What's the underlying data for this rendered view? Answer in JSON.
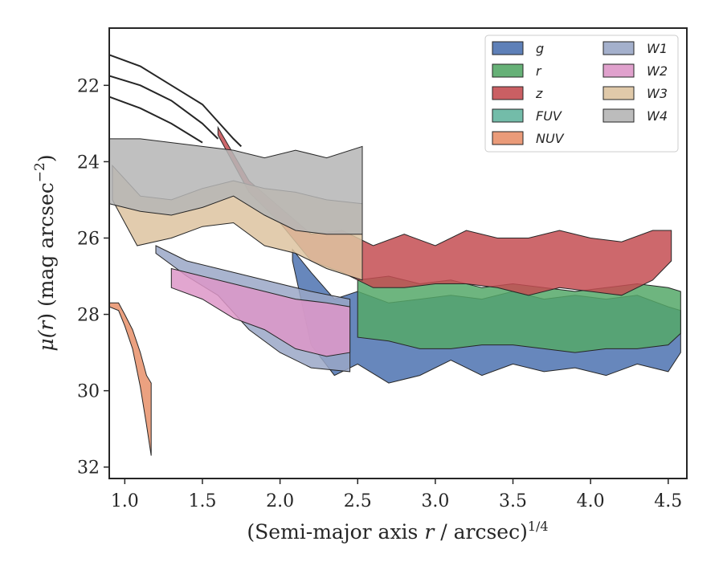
{
  "chart_data": {
    "type": "area",
    "xlabel": "(Semi-major axis r / arcsec)^{1/4}",
    "xlabel_parts": [
      "(Semi-major axis ",
      "r",
      " / arcsec)",
      "1/4"
    ],
    "ylabel": "μ(r) (mag arcsec^{-2})",
    "ylabel_parts": [
      "μ(",
      "r",
      ") (mag arcsec",
      "−2",
      ")"
    ],
    "xlim": [
      0.9,
      4.62
    ],
    "ylim": [
      32.3,
      20.5
    ],
    "y_inverted": true,
    "xticks": [
      "1.0",
      "1.5",
      "2.0",
      "2.5",
      "3.0",
      "3.5",
      "4.0",
      "4.5"
    ],
    "yticks": [
      "22",
      "24",
      "26",
      "28",
      "30",
      "32"
    ],
    "grid": false,
    "legend": {
      "placement": "top-right",
      "columns": 2
    },
    "series": [
      {
        "name": "g",
        "color": "#4c72b0",
        "upper": [
          [
            2.08,
            26.3
          ],
          [
            2.2,
            26.9
          ],
          [
            2.35,
            27.6
          ],
          [
            2.5,
            27.4
          ],
          [
            2.7,
            27.7
          ],
          [
            2.9,
            27.6
          ],
          [
            3.1,
            27.5
          ],
          [
            3.3,
            27.6
          ],
          [
            3.5,
            27.4
          ],
          [
            3.7,
            27.6
          ],
          [
            3.9,
            27.5
          ],
          [
            4.1,
            27.6
          ],
          [
            4.3,
            27.5
          ],
          [
            4.5,
            27.8
          ],
          [
            4.58,
            27.9
          ]
        ],
        "lower": [
          [
            2.08,
            26.6
          ],
          [
            2.2,
            28.8
          ],
          [
            2.35,
            29.6
          ],
          [
            2.5,
            29.3
          ],
          [
            2.7,
            29.8
          ],
          [
            2.9,
            29.6
          ],
          [
            3.1,
            29.2
          ],
          [
            3.3,
            29.6
          ],
          [
            3.5,
            29.3
          ],
          [
            3.7,
            29.5
          ],
          [
            3.9,
            29.4
          ],
          [
            4.1,
            29.6
          ],
          [
            4.3,
            29.3
          ],
          [
            4.5,
            29.5
          ],
          [
            4.58,
            29.0
          ]
        ]
      },
      {
        "name": "r",
        "color": "#55a868",
        "upper": [
          [
            2.5,
            27.1
          ],
          [
            2.7,
            27.0
          ],
          [
            2.9,
            27.2
          ],
          [
            3.1,
            27.1
          ],
          [
            3.3,
            27.3
          ],
          [
            3.5,
            27.2
          ],
          [
            3.7,
            27.3
          ],
          [
            3.9,
            27.4
          ],
          [
            4.1,
            27.3
          ],
          [
            4.3,
            27.2
          ],
          [
            4.5,
            27.3
          ],
          [
            4.58,
            27.4
          ]
        ],
        "lower": [
          [
            2.5,
            28.6
          ],
          [
            2.7,
            28.7
          ],
          [
            2.9,
            28.9
          ],
          [
            3.1,
            28.9
          ],
          [
            3.3,
            28.8
          ],
          [
            3.5,
            28.8
          ],
          [
            3.7,
            28.9
          ],
          [
            3.9,
            29.0
          ],
          [
            4.1,
            28.9
          ],
          [
            4.3,
            28.9
          ],
          [
            4.5,
            28.8
          ],
          [
            4.58,
            28.5
          ]
        ]
      },
      {
        "name": "z",
        "color": "#c44e52",
        "upper": [
          [
            1.6,
            23.1
          ],
          [
            1.8,
            24.5
          ],
          [
            2.0,
            25.2
          ],
          [
            2.2,
            25.9
          ],
          [
            2.4,
            25.8
          ],
          [
            2.6,
            26.2
          ],
          [
            2.8,
            25.9
          ],
          [
            3.0,
            26.2
          ],
          [
            3.2,
            25.8
          ],
          [
            3.4,
            26.0
          ],
          [
            3.6,
            26.0
          ],
          [
            3.8,
            25.8
          ],
          [
            4.0,
            26.0
          ],
          [
            4.2,
            26.1
          ],
          [
            4.4,
            25.8
          ],
          [
            4.52,
            25.8
          ]
        ],
        "lower": [
          [
            1.6,
            23.3
          ],
          [
            1.8,
            24.8
          ],
          [
            2.0,
            25.6
          ],
          [
            2.2,
            26.6
          ],
          [
            2.4,
            26.9
          ],
          [
            2.6,
            27.3
          ],
          [
            2.8,
            27.3
          ],
          [
            3.0,
            27.2
          ],
          [
            3.2,
            27.2
          ],
          [
            3.4,
            27.3
          ],
          [
            3.6,
            27.5
          ],
          [
            3.8,
            27.3
          ],
          [
            4.0,
            27.4
          ],
          [
            4.2,
            27.5
          ],
          [
            4.4,
            27.1
          ],
          [
            4.52,
            26.6
          ]
        ]
      },
      {
        "name": "FUV",
        "color": "#64b5a0",
        "upper": [],
        "lower": []
      },
      {
        "name": "NUV",
        "color": "#e8906a",
        "upper": [
          [
            0.9,
            27.7
          ],
          [
            0.96,
            27.7
          ],
          [
            1.0,
            28.0
          ],
          [
            1.05,
            28.4
          ],
          [
            1.1,
            29.0
          ],
          [
            1.14,
            29.6
          ],
          [
            1.17,
            29.8
          ]
        ],
        "lower": [
          [
            0.9,
            27.8
          ],
          [
            0.96,
            27.9
          ],
          [
            1.0,
            28.3
          ],
          [
            1.05,
            28.9
          ],
          [
            1.1,
            29.9
          ],
          [
            1.14,
            30.9
          ],
          [
            1.17,
            31.7
          ]
        ]
      },
      {
        "name": "W1",
        "color": "#9aa7c7",
        "upper": [
          [
            1.2,
            26.2
          ],
          [
            1.4,
            26.6
          ],
          [
            1.6,
            26.8
          ],
          [
            1.8,
            27.0
          ],
          [
            2.0,
            27.2
          ],
          [
            2.2,
            27.4
          ],
          [
            2.45,
            27.6
          ]
        ],
        "lower": [
          [
            1.2,
            26.4
          ],
          [
            1.4,
            27.0
          ],
          [
            1.6,
            27.5
          ],
          [
            1.8,
            28.4
          ],
          [
            2.0,
            29.0
          ],
          [
            2.2,
            29.4
          ],
          [
            2.45,
            29.5
          ]
        ]
      },
      {
        "name": "W2",
        "color": "#dd97c8",
        "upper": [
          [
            1.3,
            26.8
          ],
          [
            1.5,
            27.0
          ],
          [
            1.7,
            27.2
          ],
          [
            1.9,
            27.4
          ],
          [
            2.1,
            27.6
          ],
          [
            2.3,
            27.7
          ],
          [
            2.45,
            27.8
          ]
        ],
        "lower": [
          [
            1.3,
            27.3
          ],
          [
            1.5,
            27.6
          ],
          [
            1.7,
            28.1
          ],
          [
            1.9,
            28.4
          ],
          [
            2.1,
            28.9
          ],
          [
            2.3,
            29.1
          ],
          [
            2.45,
            29.0
          ]
        ]
      },
      {
        "name": "W3",
        "color": "#ddc3a0",
        "upper": [
          [
            0.92,
            24.1
          ],
          [
            1.1,
            24.9
          ],
          [
            1.3,
            25.0
          ],
          [
            1.5,
            24.7
          ],
          [
            1.7,
            24.5
          ],
          [
            1.9,
            24.7
          ],
          [
            2.1,
            24.8
          ],
          [
            2.3,
            25.0
          ],
          [
            2.53,
            25.1
          ]
        ],
        "lower": [
          [
            0.92,
            25.0
          ],
          [
            1.08,
            26.2
          ],
          [
            1.3,
            26.0
          ],
          [
            1.5,
            25.7
          ],
          [
            1.7,
            25.6
          ],
          [
            1.9,
            26.2
          ],
          [
            2.1,
            26.4
          ],
          [
            2.3,
            26.8
          ],
          [
            2.53,
            27.1
          ]
        ]
      },
      {
        "name": "W4",
        "color": "#b5b5b5",
        "upper": [
          [
            0.9,
            23.4
          ],
          [
            1.1,
            23.4
          ],
          [
            1.3,
            23.5
          ],
          [
            1.5,
            23.6
          ],
          [
            1.7,
            23.7
          ],
          [
            1.9,
            23.9
          ],
          [
            2.1,
            23.7
          ],
          [
            2.3,
            23.9
          ],
          [
            2.53,
            23.6
          ]
        ],
        "lower": [
          [
            0.9,
            25.1
          ],
          [
            1.1,
            25.3
          ],
          [
            1.3,
            25.4
          ],
          [
            1.5,
            25.2
          ],
          [
            1.7,
            24.9
          ],
          [
            1.9,
            25.4
          ],
          [
            2.1,
            25.8
          ],
          [
            2.3,
            25.9
          ],
          [
            2.53,
            25.9
          ]
        ]
      }
    ],
    "outlines": [
      [
        [
          0.9,
          21.2
        ],
        [
          1.1,
          21.5
        ],
        [
          1.3,
          22.0
        ],
        [
          1.5,
          22.5
        ],
        [
          1.7,
          23.4
        ],
        [
          1.75,
          23.6
        ]
      ],
      [
        [
          0.9,
          21.75
        ],
        [
          1.1,
          22.0
        ],
        [
          1.3,
          22.4
        ],
        [
          1.5,
          23.0
        ],
        [
          1.6,
          23.4
        ]
      ],
      [
        [
          0.9,
          22.3
        ],
        [
          1.1,
          22.6
        ],
        [
          1.3,
          23.0
        ],
        [
          1.5,
          23.5
        ]
      ]
    ]
  }
}
